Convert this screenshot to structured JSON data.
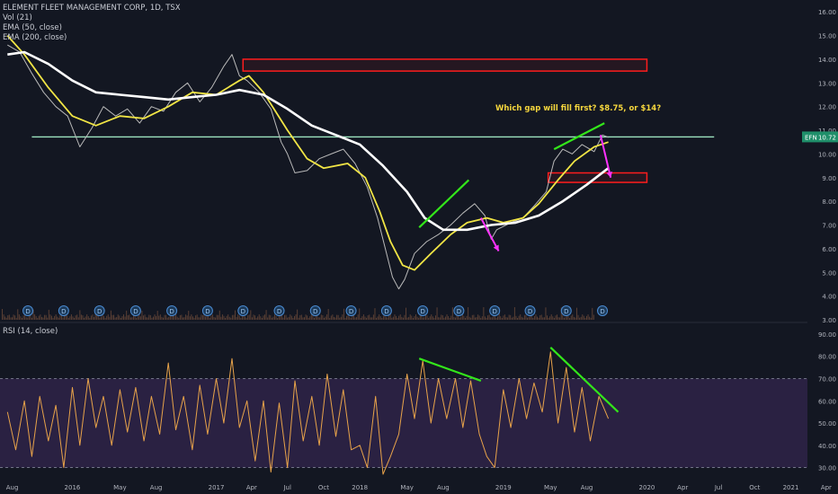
{
  "header": {
    "symbol_title": "ELEMENT FLEET MANAGEMENT CORP, 1D, TSX",
    "vol_legend": "Vol (21)",
    "ema_fast_legend": "EMA (50, close)",
    "ema_slow_legend": "EMA (200, close)",
    "rsi_legend": "RSI (14, close)"
  },
  "annotation": {
    "text": "Which gap will fill first? $8.75, or $14?"
  },
  "price_tag": {
    "symbol": "EFN",
    "value": "10.72"
  },
  "dividend_marker": "D",
  "colors": {
    "background": "#131722",
    "price": "#b9b9b9",
    "ema_fast": "#f1e545",
    "ema_slow": "#ffffff",
    "rsi": "#e8a34a",
    "rsi_band": "#2a2142",
    "trendline_green": "#33e61a",
    "arrow_magenta": "#ff32ff",
    "gap_box": "#ff1d1d",
    "support_line": "#9ee6c0",
    "price_tag": "#1f8f6a"
  },
  "chart_data": [
    {
      "type": "line",
      "panel": "price",
      "x_axis": {
        "tick_labels": [
          "Aug",
          "2016",
          "May",
          "Aug",
          "2017",
          "Apr",
          "Jul",
          "Oct",
          "2018",
          "May",
          "Aug",
          "2019",
          "May",
          "Aug",
          "2020",
          "Apr",
          "Jul",
          "Oct",
          "2021",
          "Apr"
        ],
        "tick_dates": [
          "2015-08-01",
          "2016-01-01",
          "2016-05-01",
          "2016-08-01",
          "2017-01-01",
          "2017-04-01",
          "2017-07-01",
          "2017-10-01",
          "2018-01-01",
          "2018-05-01",
          "2018-08-01",
          "2019-01-01",
          "2019-05-01",
          "2019-08-01",
          "2020-01-01",
          "2020-04-01",
          "2020-07-01",
          "2020-10-01",
          "2021-01-01",
          "2021-04-01"
        ]
      },
      "y_axis": {
        "range": [
          3,
          16.5
        ],
        "tick_labels": [
          "3.00",
          "4.00",
          "5.00",
          "6.00",
          "7.00",
          "8.00",
          "9.00",
          "10.00",
          "11.00",
          "12.00",
          "13.00",
          "14.00",
          "15.00",
          "16.00"
        ]
      },
      "series": [
        {
          "key": "price",
          "points": [
            [
              "2015-07-20",
              14.6
            ],
            [
              "2015-08-20",
              14.3
            ],
            [
              "2015-09-20",
              13.4
            ],
            [
              "2015-10-20",
              12.6
            ],
            [
              "2015-11-20",
              12.0
            ],
            [
              "2015-12-20",
              11.6
            ],
            [
              "2016-01-20",
              10.3
            ],
            [
              "2016-02-20",
              11.1
            ],
            [
              "2016-03-20",
              12.0
            ],
            [
              "2016-04-20",
              11.6
            ],
            [
              "2016-05-20",
              11.9
            ],
            [
              "2016-06-20",
              11.3
            ],
            [
              "2016-07-20",
              12.0
            ],
            [
              "2016-08-20",
              11.8
            ],
            [
              "2016-09-20",
              12.6
            ],
            [
              "2016-10-20",
              13.0
            ],
            [
              "2016-11-20",
              12.2
            ],
            [
              "2016-12-20",
              12.8
            ],
            [
              "2017-01-20",
              13.7
            ],
            [
              "2017-02-10",
              14.2
            ],
            [
              "2017-03-01",
              13.3
            ],
            [
              "2017-03-20",
              13.1
            ],
            [
              "2017-04-20",
              12.6
            ],
            [
              "2017-05-20",
              11.9
            ],
            [
              "2017-06-15",
              10.5
            ],
            [
              "2017-07-01",
              10.0
            ],
            [
              "2017-07-20",
              9.2
            ],
            [
              "2017-08-20",
              9.3
            ],
            [
              "2017-09-20",
              9.8
            ],
            [
              "2017-10-20",
              10.0
            ],
            [
              "2017-11-20",
              10.2
            ],
            [
              "2017-12-20",
              9.6
            ],
            [
              "2018-01-20",
              8.6
            ],
            [
              "2018-02-15",
              7.3
            ],
            [
              "2018-03-10",
              5.8
            ],
            [
              "2018-03-25",
              4.8
            ],
            [
              "2018-04-10",
              4.3
            ],
            [
              "2018-04-25",
              4.7
            ],
            [
              "2018-05-20",
              5.8
            ],
            [
              "2018-06-20",
              6.3
            ],
            [
              "2018-07-20",
              6.6
            ],
            [
              "2018-08-20",
              7.0
            ],
            [
              "2018-09-20",
              7.5
            ],
            [
              "2018-10-20",
              7.9
            ],
            [
              "2018-11-15",
              7.4
            ],
            [
              "2018-12-01",
              6.4
            ],
            [
              "2018-12-15",
              6.8
            ],
            [
              "2019-01-20",
              7.1
            ],
            [
              "2019-02-20",
              7.3
            ],
            [
              "2019-03-20",
              7.8
            ],
            [
              "2019-04-20",
              8.4
            ],
            [
              "2019-05-10",
              9.7
            ],
            [
              "2019-06-01",
              10.2
            ],
            [
              "2019-06-25",
              10.0
            ],
            [
              "2019-07-20",
              10.4
            ],
            [
              "2019-08-20",
              10.1
            ],
            [
              "2019-09-10",
              10.8
            ],
            [
              "2019-09-25",
              10.7
            ]
          ]
        },
        {
          "key": "ema_fast",
          "points": [
            [
              "2015-07-20",
              15.0
            ],
            [
              "2015-09-01",
              14.2
            ],
            [
              "2015-11-01",
              12.8
            ],
            [
              "2016-01-01",
              11.6
            ],
            [
              "2016-03-01",
              11.2
            ],
            [
              "2016-05-01",
              11.6
            ],
            [
              "2016-07-01",
              11.5
            ],
            [
              "2016-09-01",
              12.0
            ],
            [
              "2016-11-01",
              12.6
            ],
            [
              "2017-01-01",
              12.5
            ],
            [
              "2017-03-01",
              13.1
            ],
            [
              "2017-03-25",
              13.3
            ],
            [
              "2017-05-01",
              12.6
            ],
            [
              "2017-07-01",
              11.0
            ],
            [
              "2017-08-20",
              9.8
            ],
            [
              "2017-10-01",
              9.4
            ],
            [
              "2017-12-01",
              9.6
            ],
            [
              "2018-01-15",
              9.0
            ],
            [
              "2018-02-20",
              7.6
            ],
            [
              "2018-03-20",
              6.3
            ],
            [
              "2018-04-20",
              5.3
            ],
            [
              "2018-05-20",
              5.1
            ],
            [
              "2018-07-01",
              5.8
            ],
            [
              "2018-08-20",
              6.6
            ],
            [
              "2018-10-01",
              7.1
            ],
            [
              "2018-11-20",
              7.3
            ],
            [
              "2019-01-01",
              7.1
            ],
            [
              "2019-02-20",
              7.3
            ],
            [
              "2019-04-01",
              7.9
            ],
            [
              "2019-05-20",
              8.9
            ],
            [
              "2019-07-01",
              9.7
            ],
            [
              "2019-08-20",
              10.3
            ],
            [
              "2019-09-25",
              10.5
            ]
          ]
        },
        {
          "key": "ema_slow",
          "points": [
            [
              "2015-07-20",
              14.2
            ],
            [
              "2015-09-01",
              14.3
            ],
            [
              "2015-11-01",
              13.8
            ],
            [
              "2016-01-01",
              13.1
            ],
            [
              "2016-03-01",
              12.6
            ],
            [
              "2016-05-01",
              12.5
            ],
            [
              "2016-07-01",
              12.4
            ],
            [
              "2016-09-01",
              12.3
            ],
            [
              "2016-11-01",
              12.4
            ],
            [
              "2017-01-01",
              12.5
            ],
            [
              "2017-03-01",
              12.7
            ],
            [
              "2017-05-01",
              12.5
            ],
            [
              "2017-07-01",
              11.9
            ],
            [
              "2017-09-01",
              11.2
            ],
            [
              "2017-11-01",
              10.8
            ],
            [
              "2018-01-01",
              10.4
            ],
            [
              "2018-03-01",
              9.5
            ],
            [
              "2018-05-01",
              8.4
            ],
            [
              "2018-06-15",
              7.3
            ],
            [
              "2018-08-01",
              6.8
            ],
            [
              "2018-10-01",
              6.8
            ],
            [
              "2018-12-01",
              7.0
            ],
            [
              "2019-02-01",
              7.1
            ],
            [
              "2019-04-01",
              7.4
            ],
            [
              "2019-06-01",
              8.0
            ],
            [
              "2019-08-01",
              8.7
            ],
            [
              "2019-09-25",
              9.4
            ]
          ]
        }
      ],
      "dividend_dates": [
        "2015-09-10",
        "2015-12-10",
        "2016-03-10",
        "2016-06-10",
        "2016-09-10",
        "2016-12-10",
        "2017-03-10",
        "2017-06-10",
        "2017-09-10",
        "2017-12-10",
        "2018-03-10",
        "2018-06-10",
        "2018-09-10",
        "2018-12-10",
        "2019-03-10",
        "2019-06-10",
        "2019-09-10"
      ],
      "gap_boxes": [
        {
          "x0": "2017-03-10",
          "x1": "2020-01-01",
          "y0": 13.5,
          "y1": 14.0
        },
        {
          "x0": "2019-04-25",
          "x1": "2020-01-01",
          "y0": 8.8,
          "y1": 9.2
        }
      ],
      "support_line": {
        "x0": "2015-09-20",
        "x1": "2020-06-20",
        "y": 10.72
      },
      "trendlines": [
        {
          "x0": "2018-06-01",
          "x1": "2018-10-05",
          "y0": 6.9,
          "y1": 8.9
        },
        {
          "x0": "2019-05-10",
          "x1": "2019-09-15",
          "y0": 10.2,
          "y1": 11.3
        }
      ],
      "arrows": [
        {
          "x0": "2018-11-05",
          "y0": 7.3,
          "x1": "2018-12-20",
          "y1": 5.9
        },
        {
          "x0": "2019-09-05",
          "y0": 10.8,
          "x1": "2019-10-01",
          "y1": 9.0
        }
      ]
    },
    {
      "type": "line",
      "panel": "rsi",
      "y_axis": {
        "range": [
          25,
          94
        ],
        "tick_labels": [
          "30.00",
          "40.00",
          "50.00",
          "60.00",
          "70.00",
          "80.00",
          "90.00"
        ]
      },
      "band": [
        30,
        70
      ],
      "series": [
        {
          "key": "rsi",
          "points": [
            [
              "2015-07-20",
              55
            ],
            [
              "2015-08-10",
              38
            ],
            [
              "2015-09-01",
              60
            ],
            [
              "2015-09-20",
              35
            ],
            [
              "2015-10-10",
              62
            ],
            [
              "2015-11-01",
              42
            ],
            [
              "2015-11-20",
              58
            ],
            [
              "2015-12-10",
              30
            ],
            [
              "2016-01-01",
              66
            ],
            [
              "2016-01-20",
              40
            ],
            [
              "2016-02-10",
              70
            ],
            [
              "2016-03-01",
              48
            ],
            [
              "2016-03-20",
              62
            ],
            [
              "2016-04-10",
              40
            ],
            [
              "2016-05-01",
              65
            ],
            [
              "2016-05-20",
              46
            ],
            [
              "2016-06-10",
              66
            ],
            [
              "2016-07-01",
              42
            ],
            [
              "2016-07-20",
              62
            ],
            [
              "2016-08-10",
              45
            ],
            [
              "2016-09-01",
              77
            ],
            [
              "2016-09-20",
              47
            ],
            [
              "2016-10-10",
              62
            ],
            [
              "2016-11-01",
              38
            ],
            [
              "2016-11-20",
              67
            ],
            [
              "2016-12-10",
              45
            ],
            [
              "2017-01-01",
              70
            ],
            [
              "2017-01-20",
              50
            ],
            [
              "2017-02-10",
              79
            ],
            [
              "2017-03-01",
              48
            ],
            [
              "2017-03-20",
              60
            ],
            [
              "2017-04-10",
              33
            ],
            [
              "2017-05-01",
              60
            ],
            [
              "2017-05-20",
              28
            ],
            [
              "2017-06-10",
              59
            ],
            [
              "2017-07-01",
              30
            ],
            [
              "2017-07-20",
              69
            ],
            [
              "2017-08-10",
              42
            ],
            [
              "2017-09-01",
              62
            ],
            [
              "2017-09-20",
              40
            ],
            [
              "2017-10-10",
              72
            ],
            [
              "2017-11-01",
              44
            ],
            [
              "2017-11-20",
              65
            ],
            [
              "2017-12-10",
              38
            ],
            [
              "2018-01-01",
              40
            ],
            [
              "2018-01-20",
              30
            ],
            [
              "2018-02-10",
              62
            ],
            [
              "2018-03-01",
              27
            ],
            [
              "2018-03-20",
              35
            ],
            [
              "2018-04-10",
              45
            ],
            [
              "2018-05-01",
              72
            ],
            [
              "2018-05-20",
              52
            ],
            [
              "2018-06-10",
              78
            ],
            [
              "2018-07-01",
              50
            ],
            [
              "2018-07-20",
              70
            ],
            [
              "2018-08-10",
              52
            ],
            [
              "2018-09-01",
              70
            ],
            [
              "2018-09-20",
              48
            ],
            [
              "2018-10-10",
              69
            ],
            [
              "2018-11-01",
              45
            ],
            [
              "2018-11-20",
              35
            ],
            [
              "2018-12-10",
              30
            ],
            [
              "2019-01-01",
              65
            ],
            [
              "2019-01-20",
              48
            ],
            [
              "2019-02-10",
              70
            ],
            [
              "2019-03-01",
              52
            ],
            [
              "2019-03-20",
              68
            ],
            [
              "2019-04-10",
              55
            ],
            [
              "2019-05-01",
              82
            ],
            [
              "2019-05-20",
              50
            ],
            [
              "2019-06-10",
              75
            ],
            [
              "2019-07-01",
              46
            ],
            [
              "2019-07-20",
              66
            ],
            [
              "2019-08-10",
              42
            ],
            [
              "2019-09-01",
              62
            ],
            [
              "2019-09-25",
              52
            ]
          ]
        }
      ],
      "trendlines": [
        {
          "x0": "2018-06-01",
          "x1": "2018-11-05",
          "y0": 79,
          "y1": 69
        },
        {
          "x0": "2019-05-01",
          "x1": "2019-10-20",
          "y0": 84,
          "y1": 55
        }
      ]
    }
  ]
}
